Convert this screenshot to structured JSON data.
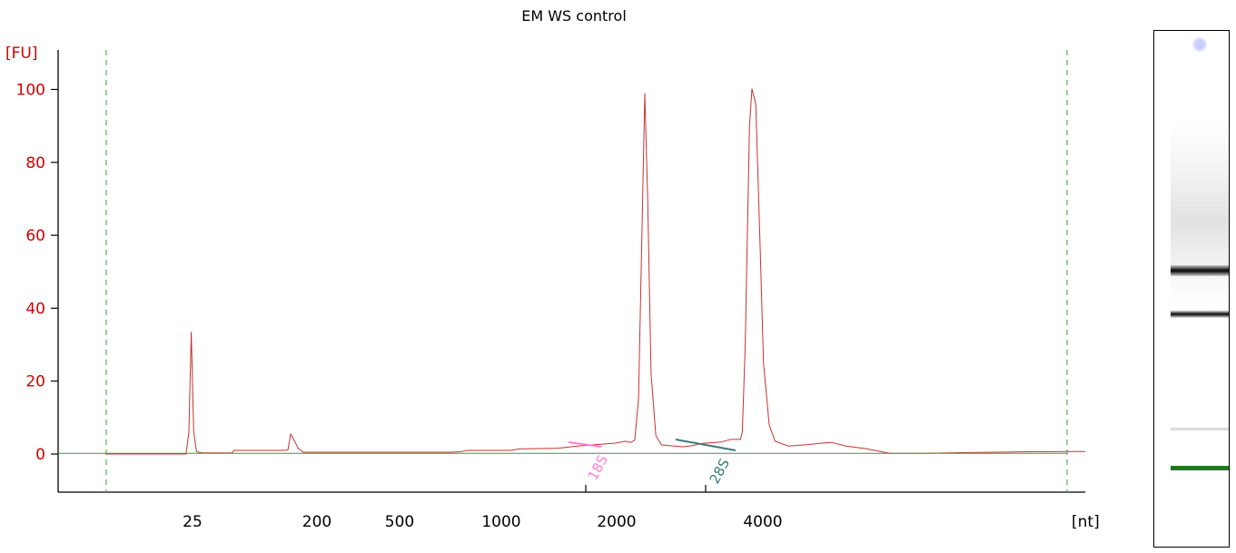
{
  "chart_data": {
    "type": "line",
    "title": "EM WS control",
    "ylabel": "[FU]",
    "xlabel": "[nt]",
    "ylim": [
      -10,
      110
    ],
    "y_ticks": [
      0,
      20,
      40,
      60,
      80,
      100
    ],
    "x_ticks": [
      "25",
      "200",
      "500",
      "1000",
      "2000",
      "4000"
    ],
    "grid": false,
    "series": [
      {
        "color": "#c83232",
        "x_scale": "migration-relative (0 = lower marker line, 1 = upper marker line)",
        "points": [
          [
            0.0,
            0.0
          ],
          [
            0.083,
            0.0
          ],
          [
            0.086,
            6
          ],
          [
            0.0885,
            33.5
          ],
          [
            0.091,
            6
          ],
          [
            0.094,
            0.6
          ],
          [
            0.1,
            0.3
          ],
          [
            0.131,
            0.3
          ],
          [
            0.133,
            1.0
          ],
          [
            0.18,
            1.0
          ],
          [
            0.189,
            1.1
          ],
          [
            0.192,
            5.5
          ],
          [
            0.196,
            3.5
          ],
          [
            0.2,
            1.5
          ],
          [
            0.205,
            0.5
          ],
          [
            0.3,
            0.5
          ],
          [
            0.33,
            0.5
          ],
          [
            0.36,
            0.5
          ],
          [
            0.37,
            0.7
          ],
          [
            0.376,
            1.0
          ],
          [
            0.42,
            1.0
          ],
          [
            0.43,
            1.4
          ],
          [
            0.47,
            1.6
          ],
          [
            0.49,
            2.2
          ],
          [
            0.53,
            3.0
          ],
          [
            0.54,
            3.5
          ],
          [
            0.546,
            3.2
          ],
          [
            0.55,
            3.8
          ],
          [
            0.554,
            15
          ],
          [
            0.5575,
            60
          ],
          [
            0.5605,
            99
          ],
          [
            0.5635,
            70
          ],
          [
            0.567,
            22
          ],
          [
            0.572,
            5
          ],
          [
            0.578,
            2.5
          ],
          [
            0.6,
            2.0
          ],
          [
            0.61,
            2.3
          ],
          [
            0.62,
            2.9
          ],
          [
            0.64,
            3.3
          ],
          [
            0.65,
            4.0
          ],
          [
            0.66,
            4.0
          ],
          [
            0.662,
            6
          ],
          [
            0.665,
            30
          ],
          [
            0.6695,
            90
          ],
          [
            0.672,
            100.2
          ],
          [
            0.676,
            96
          ],
          [
            0.68,
            62
          ],
          [
            0.684,
            25
          ],
          [
            0.69,
            8
          ],
          [
            0.696,
            3.5
          ],
          [
            0.71,
            2.2
          ],
          [
            0.73,
            2.6
          ],
          [
            0.745,
            3.0
          ],
          [
            0.755,
            3.2
          ],
          [
            0.77,
            2.2
          ],
          [
            0.79,
            1.5
          ],
          [
            0.8,
            1.0
          ],
          [
            0.815,
            0.2
          ],
          [
            0.85,
            0.2
          ],
          [
            0.9,
            0.4
          ],
          [
            0.95,
            0.6
          ],
          [
            1.0,
            0.7
          ]
        ]
      },
      {
        "color": "#3a9a3a",
        "x_scale": "baseline",
        "points": [
          [
            0.0,
            0.2
          ],
          [
            1.0,
            0.2
          ]
        ]
      }
    ],
    "annotations": [
      {
        "label": "18S",
        "color": "#ff7fd0"
      },
      {
        "label": "28S",
        "color": "#3a7a7a"
      }
    ]
  },
  "gel_lane": {
    "bands": [
      {
        "color": "#111111",
        "strength": "strong"
      },
      {
        "color": "#1a1a1a",
        "strength": "medium"
      },
      {
        "color": "#bfbfbf",
        "strength": "faint"
      },
      {
        "color": "#1f7a1f",
        "strength": "marker"
      }
    ],
    "well_color": "#c8ccff"
  }
}
